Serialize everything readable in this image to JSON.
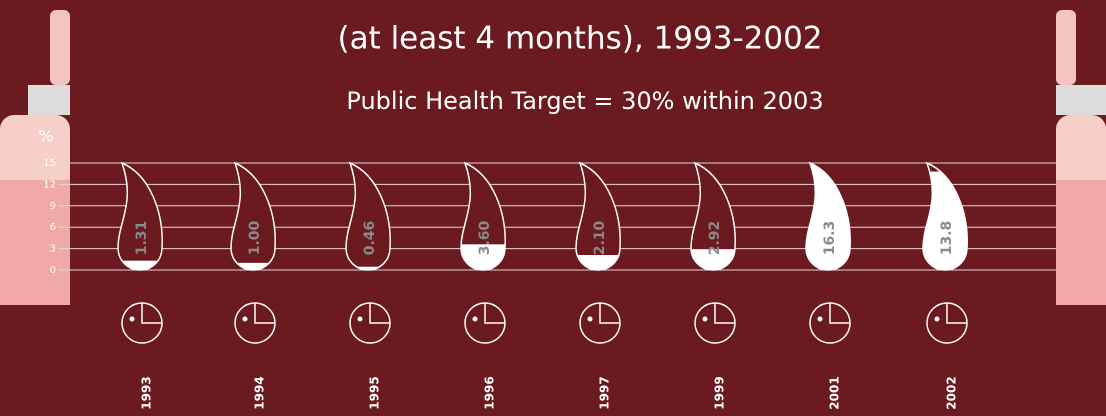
{
  "chart_data": {
    "type": "drop",
    "title": "(at least 4 months), 1993-2002",
    "subtitle": "Public Health Target = 30% within 2003",
    "y_label": "%",
    "categories": [
      "1993",
      "1994",
      "1995",
      "1996",
      "1997",
      "1999",
      "2001",
      "2002"
    ],
    "values": [
      1.31,
      1.0,
      0.46,
      3.6,
      2.1,
      2.92,
      16.3,
      13.8
    ],
    "value_labels": [
      "1.31",
      "1.00",
      "0.46",
      "3.60",
      "2.10",
      "2.92",
      "16.3",
      "13.8"
    ],
    "ylim": [
      0,
      15
    ],
    "yticks": [
      0,
      3,
      6,
      9,
      12,
      15
    ],
    "grid": true,
    "color": "#ffffff"
  }
}
